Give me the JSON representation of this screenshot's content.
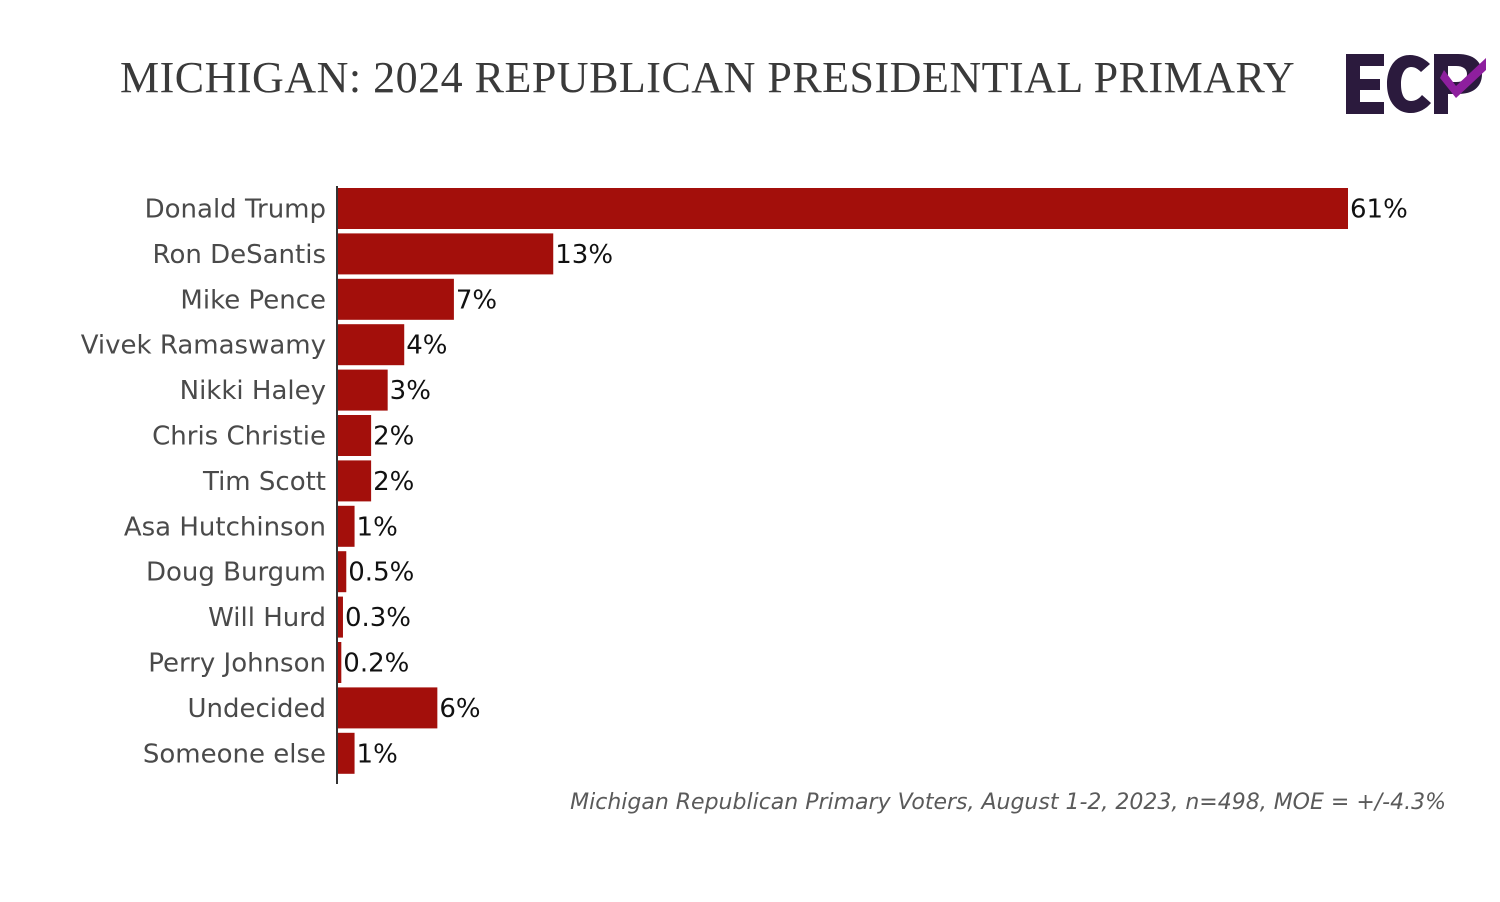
{
  "title": "MICHIGAN: 2024 REPUBLICAN PRESIDENTIAL PRIMARY",
  "logo_text": "ECP",
  "footnote": "Michigan Republican Primary Voters, August 1-2, 2023, n=498, MOE = +/-4.3%",
  "colors": {
    "bar": "#a30f0b",
    "logo_dark": "#2b1a3d",
    "logo_accent": "#8e1f9e",
    "label": "#4a4a4a",
    "value": "#111111"
  },
  "chart_data": {
    "type": "bar",
    "orientation": "horizontal",
    "title": "MICHIGAN: 2024 REPUBLICAN PRESIDENTIAL PRIMARY",
    "categories": [
      "Donald Trump",
      "Ron DeSantis",
      "Mike Pence",
      "Vivek Ramaswamy",
      "Nikki Haley",
      "Chris Christie",
      "Tim Scott",
      "Asa Hutchinson",
      "Doug Burgum",
      "Will Hurd",
      "Perry Johnson",
      "Undecided",
      "Someone else"
    ],
    "values": [
      61,
      13,
      7,
      4,
      3,
      2,
      2,
      1,
      0.5,
      0.3,
      0.2,
      6,
      1
    ],
    "value_labels": [
      "61%",
      "13%",
      "7%",
      "4%",
      "3%",
      "2%",
      "2%",
      "1%",
      "0.5%",
      "0.3%",
      "0.2%",
      "6%",
      "1%"
    ],
    "xlim": [
      0,
      61
    ],
    "grid": false,
    "legend": "none"
  }
}
